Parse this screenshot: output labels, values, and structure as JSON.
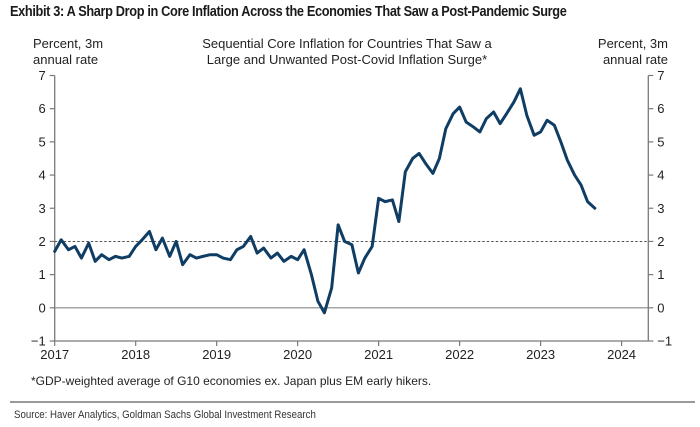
{
  "exhibit_title": "Exhibit 3: A Sharp Drop in Core Inflation Across the Economies That Saw a Post-Pandemic Surge",
  "source": "Source: Haver Analytics, Goldman Sachs Global Investment Research",
  "chart_data": {
    "type": "line",
    "title": "Sequential Core Inflation for Countries That Saw a Large and Unwanted Post-Covid Inflation Surge*",
    "title_lines": [
      "Sequential Core Inflation for Countries That Saw a",
      "Large and Unwanted Post-Covid Inflation Surge*"
    ],
    "ylabel_left": [
      "Percent, 3m",
      "annual rate"
    ],
    "ylabel_right": [
      "Percent, 3m",
      "annual rate"
    ],
    "xlabel": "",
    "footnote": "*GDP-weighted average of G10 economies ex. Japan plus EM early hikers.",
    "ylim": [
      -1,
      7
    ],
    "yticks": [
      -1,
      0,
      1,
      2,
      3,
      4,
      5,
      6,
      7
    ],
    "ytick_labels": [
      "−1",
      "0",
      "1",
      "2",
      "3",
      "4",
      "5",
      "6",
      "7"
    ],
    "xlim": [
      2017.0,
      2024.33
    ],
    "xticks": [
      2017,
      2018,
      2019,
      2020,
      2021,
      2022,
      2023,
      2024
    ],
    "xtick_labels": [
      "2017",
      "2018",
      "2019",
      "2020",
      "2021",
      "2022",
      "2023",
      "2024"
    ],
    "reference_lines": [
      {
        "y": 2,
        "style": "dashed",
        "color": "#555555"
      },
      {
        "y": 0,
        "style": "solid",
        "color": "#888888"
      }
    ],
    "grid": false,
    "legend": "none",
    "series": [
      {
        "name": "Sequential core inflation (3m annualized)",
        "color": "#0f3d63",
        "x": [
          2017.0,
          2017.08,
          2017.17,
          2017.25,
          2017.33,
          2017.42,
          2017.5,
          2017.58,
          2017.67,
          2017.75,
          2017.83,
          2017.92,
          2018.0,
          2018.08,
          2018.17,
          2018.25,
          2018.33,
          2018.42,
          2018.5,
          2018.58,
          2018.67,
          2018.75,
          2018.83,
          2018.92,
          2019.0,
          2019.08,
          2019.17,
          2019.25,
          2019.33,
          2019.42,
          2019.5,
          2019.58,
          2019.67,
          2019.75,
          2019.83,
          2019.92,
          2020.0,
          2020.08,
          2020.17,
          2020.25,
          2020.33,
          2020.42,
          2020.5,
          2020.58,
          2020.67,
          2020.75,
          2020.83,
          2020.92,
          2021.0,
          2021.08,
          2021.17,
          2021.25,
          2021.33,
          2021.42,
          2021.5,
          2021.58,
          2021.67,
          2021.75,
          2021.83,
          2021.92,
          2022.0,
          2022.08,
          2022.17,
          2022.25,
          2022.33,
          2022.42,
          2022.5,
          2022.58,
          2022.67,
          2022.75,
          2022.83,
          2022.92,
          2023.0,
          2023.08,
          2023.17,
          2023.25,
          2023.33,
          2023.42,
          2023.5,
          2023.58,
          2023.67
        ],
        "values": [
          1.7,
          2.05,
          1.75,
          1.85,
          1.5,
          1.95,
          1.4,
          1.6,
          1.45,
          1.55,
          1.5,
          1.55,
          1.85,
          2.05,
          2.3,
          1.75,
          2.1,
          1.55,
          2.0,
          1.3,
          1.6,
          1.5,
          1.55,
          1.6,
          1.6,
          1.5,
          1.45,
          1.75,
          1.85,
          2.15,
          1.65,
          1.8,
          1.5,
          1.65,
          1.4,
          1.55,
          1.45,
          1.75,
          1.0,
          0.2,
          -0.15,
          0.6,
          2.5,
          2.0,
          1.9,
          1.05,
          1.5,
          1.85,
          3.3,
          3.2,
          3.25,
          2.6,
          4.1,
          4.5,
          4.65,
          4.35,
          4.05,
          4.5,
          5.4,
          5.85,
          6.05,
          5.6,
          5.45,
          5.3,
          5.7,
          5.9,
          5.55,
          5.85,
          6.2,
          6.6,
          5.8,
          5.2,
          5.3,
          5.65,
          5.5,
          5.0,
          4.45,
          4.0,
          3.7,
          3.2,
          3.0
        ]
      }
    ]
  }
}
